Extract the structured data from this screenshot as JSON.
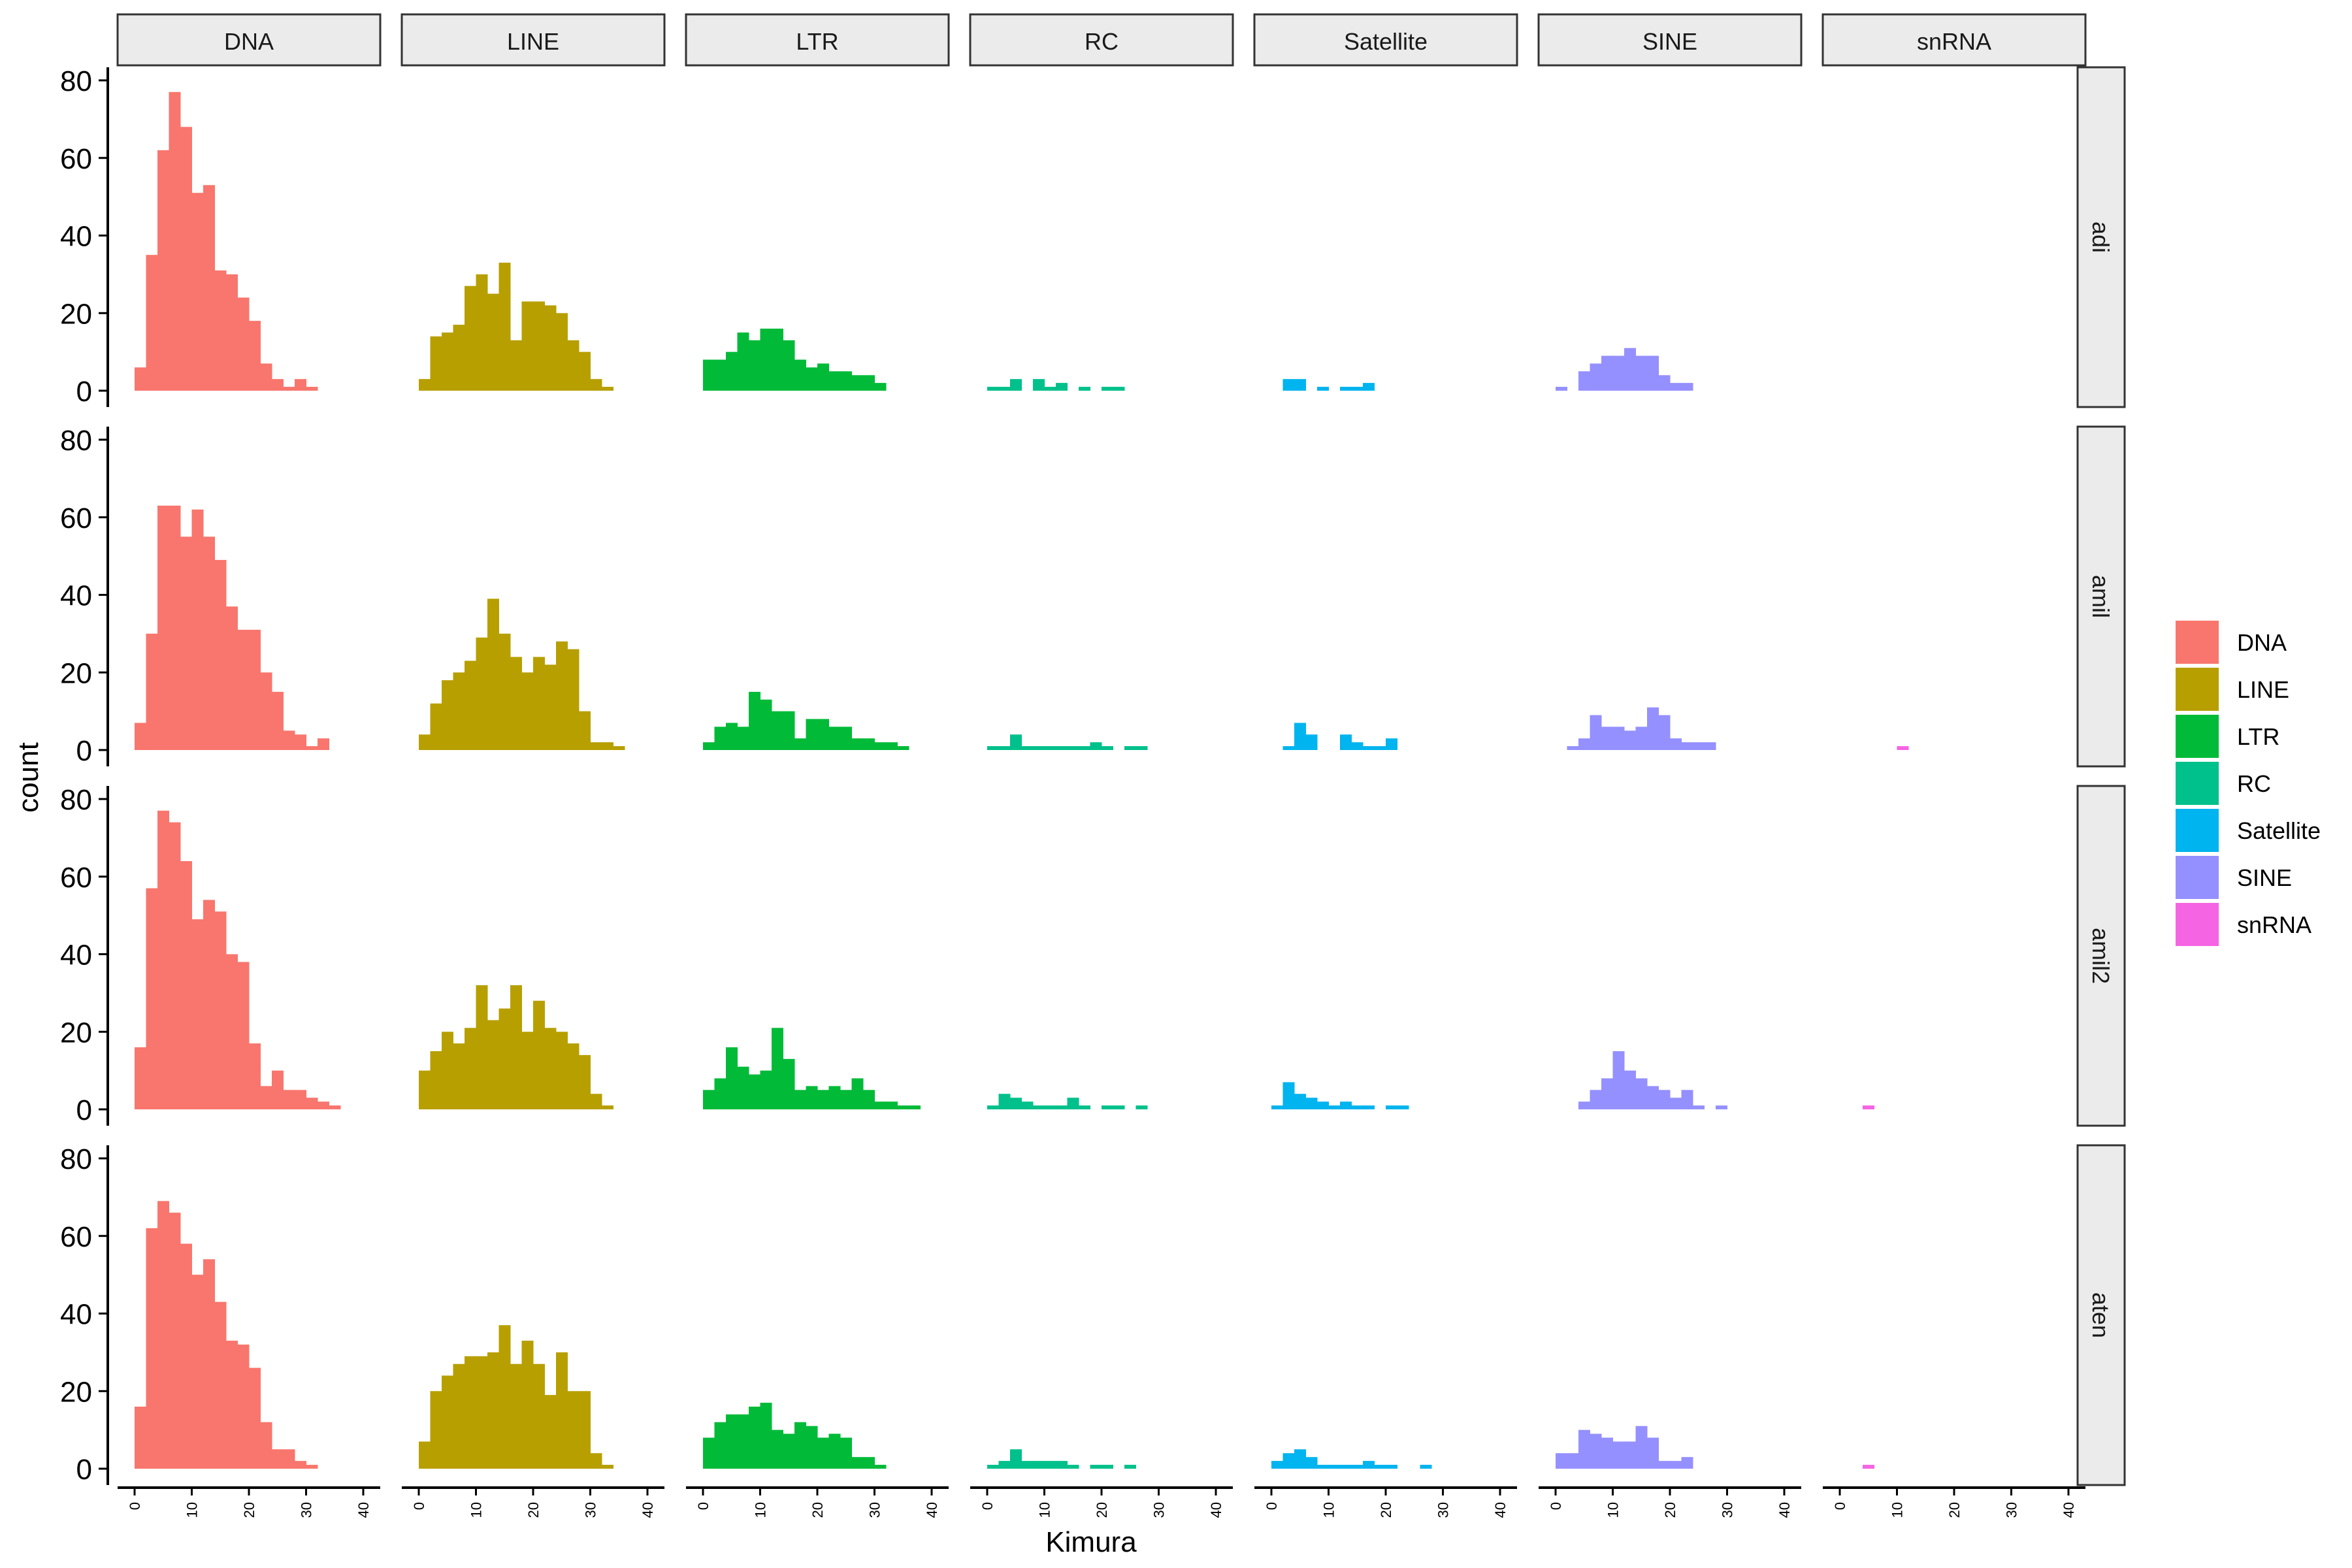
{
  "chart_data": {
    "type": "bar",
    "subtype": "faceted histogram",
    "xlabel": "Kimura",
    "ylabel": "count",
    "xlim": [
      0,
      40
    ],
    "ylim": [
      0,
      80
    ],
    "x_ticks": [
      0,
      10,
      20,
      30,
      40
    ],
    "y_ticks": [
      0,
      20,
      40,
      60,
      80
    ],
    "bin_width": 2,
    "bin_starts": [
      0,
      2,
      4,
      6,
      8,
      10,
      12,
      14,
      16,
      18,
      20,
      22,
      24,
      26,
      28,
      30,
      32,
      34,
      36,
      38
    ],
    "grid": false,
    "legend_position": "right",
    "columns": [
      "DNA",
      "LINE",
      "LTR",
      "RC",
      "Satellite",
      "SINE",
      "snRNA"
    ],
    "rows": [
      "adi",
      "amil",
      "amil2",
      "aten"
    ],
    "colors": {
      "DNA": "#F8766D",
      "LINE": "#B79F00",
      "LTR": "#00BA38",
      "RC": "#00C08B",
      "Satellite": "#00B4EF",
      "SINE": "#9590FF",
      "snRNA": "#F564E3"
    },
    "legend": [
      "DNA",
      "LINE",
      "LTR",
      "RC",
      "Satellite",
      "SINE",
      "snRNA"
    ],
    "panels": {
      "adi": {
        "DNA": [
          6,
          35,
          62,
          77,
          68,
          51,
          53,
          31,
          30,
          24,
          18,
          7,
          3,
          1,
          3,
          1,
          0,
          0,
          0,
          0
        ],
        "LINE": [
          3,
          14,
          15,
          17,
          27,
          30,
          25,
          33,
          13,
          23,
          23,
          22,
          20,
          13,
          10,
          3,
          1,
          0,
          0,
          0
        ],
        "LTR": [
          8,
          8,
          10,
          15,
          13,
          16,
          16,
          13,
          8,
          6,
          7,
          5,
          5,
          4,
          4,
          2,
          0,
          0,
          0,
          0
        ],
        "RC": [
          1,
          1,
          3,
          0,
          3,
          1,
          2,
          0,
          1,
          0,
          1,
          1,
          0,
          0,
          0,
          0,
          0,
          0,
          0,
          0
        ],
        "Satellite": [
          0,
          3,
          3,
          0,
          1,
          0,
          1,
          1,
          2,
          0,
          0,
          0,
          0,
          0,
          0,
          0,
          0,
          0,
          0,
          0
        ],
        "SINE": [
          1,
          0,
          5,
          7,
          9,
          9,
          11,
          9,
          9,
          4,
          2,
          2,
          0,
          0,
          0,
          0,
          0,
          0,
          0,
          0
        ],
        "snRNA": [
          0,
          0,
          0,
          0,
          0,
          0,
          0,
          0,
          0,
          0,
          0,
          0,
          0,
          0,
          0,
          0,
          0,
          0,
          0,
          0
        ]
      },
      "amil": {
        "DNA": [
          7,
          30,
          63,
          63,
          55,
          62,
          55,
          49,
          37,
          31,
          31,
          20,
          15,
          5,
          4,
          1,
          3,
          0,
          0,
          0
        ],
        "LINE": [
          4,
          12,
          18,
          20,
          23,
          29,
          39,
          30,
          24,
          20,
          24,
          22,
          28,
          26,
          10,
          2,
          2,
          1,
          0,
          0
        ],
        "LTR": [
          2,
          6,
          7,
          6,
          15,
          13,
          10,
          10,
          3,
          8,
          8,
          6,
          6,
          3,
          3,
          2,
          2,
          1,
          0,
          0
        ],
        "RC": [
          1,
          1,
          4,
          1,
          1,
          1,
          1,
          1,
          1,
          2,
          1,
          0,
          1,
          1,
          0,
          0,
          0,
          0,
          0,
          0
        ],
        "Satellite": [
          0,
          1,
          7,
          4,
          0,
          0,
          4,
          2,
          1,
          1,
          3,
          0,
          0,
          0,
          0,
          0,
          0,
          0,
          0,
          0
        ],
        "SINE": [
          0,
          1,
          3,
          9,
          6,
          6,
          5,
          6,
          11,
          9,
          3,
          2,
          2,
          2,
          0,
          0,
          0,
          0,
          0,
          0
        ],
        "snRNA": [
          0,
          0,
          0,
          0,
          0,
          1,
          0,
          0,
          0,
          0,
          0,
          0,
          0,
          0,
          0,
          0,
          0,
          0,
          0,
          0
        ]
      },
      "amil2": {
        "DNA": [
          16,
          57,
          77,
          74,
          64,
          49,
          54,
          51,
          40,
          38,
          17,
          6,
          10,
          5,
          5,
          3,
          2,
          1,
          0,
          0
        ],
        "LINE": [
          10,
          15,
          20,
          17,
          21,
          32,
          23,
          26,
          32,
          20,
          28,
          21,
          20,
          17,
          14,
          4,
          1,
          0,
          0,
          0
        ],
        "LTR": [
          5,
          8,
          16,
          11,
          9,
          10,
          21,
          13,
          5,
          6,
          5,
          6,
          5,
          8,
          5,
          2,
          2,
          1,
          1,
          0
        ],
        "RC": [
          1,
          4,
          3,
          2,
          1,
          1,
          1,
          3,
          1,
          0,
          1,
          1,
          0,
          1,
          0,
          0,
          0,
          0,
          0,
          0
        ],
        "Satellite": [
          1,
          7,
          4,
          3,
          2,
          1,
          2,
          1,
          1,
          0,
          1,
          1,
          0,
          0,
          0,
          0,
          0,
          0,
          0,
          0
        ],
        "SINE": [
          0,
          0,
          2,
          5,
          8,
          15,
          10,
          8,
          6,
          5,
          3,
          5,
          1,
          0,
          1,
          0,
          0,
          0,
          0,
          0
        ],
        "snRNA": [
          0,
          0,
          1,
          0,
          0,
          0,
          0,
          0,
          0,
          0,
          0,
          0,
          0,
          0,
          0,
          0,
          0,
          0,
          0,
          0
        ]
      },
      "aten": {
        "DNA": [
          16,
          62,
          69,
          66,
          58,
          50,
          54,
          43,
          33,
          32,
          26,
          12,
          5,
          5,
          2,
          1,
          0,
          0,
          0,
          0
        ],
        "LINE": [
          7,
          20,
          24,
          27,
          29,
          29,
          30,
          37,
          27,
          33,
          27,
          19,
          30,
          20,
          20,
          4,
          1,
          0,
          0,
          0
        ],
        "LTR": [
          8,
          12,
          14,
          14,
          16,
          17,
          10,
          9,
          12,
          11,
          8,
          9,
          8,
          3,
          3,
          1,
          0,
          0,
          0,
          0
        ],
        "RC": [
          1,
          2,
          5,
          2,
          2,
          2,
          2,
          1,
          0,
          1,
          1,
          0,
          1,
          0,
          0,
          0,
          0,
          0,
          0,
          0
        ],
        "Satellite": [
          2,
          4,
          5,
          3,
          1,
          1,
          1,
          1,
          2,
          1,
          1,
          0,
          0,
          1,
          0,
          0,
          0,
          0,
          0,
          0
        ],
        "SINE": [
          4,
          4,
          10,
          9,
          8,
          7,
          7,
          11,
          8,
          2,
          2,
          3,
          0,
          0,
          0,
          0,
          0,
          0,
          0,
          0
        ],
        "snRNA": [
          0,
          0,
          1,
          0,
          0,
          0,
          0,
          0,
          0,
          0,
          0,
          0,
          0,
          0,
          0,
          0,
          0,
          0,
          0,
          0
        ]
      }
    }
  }
}
